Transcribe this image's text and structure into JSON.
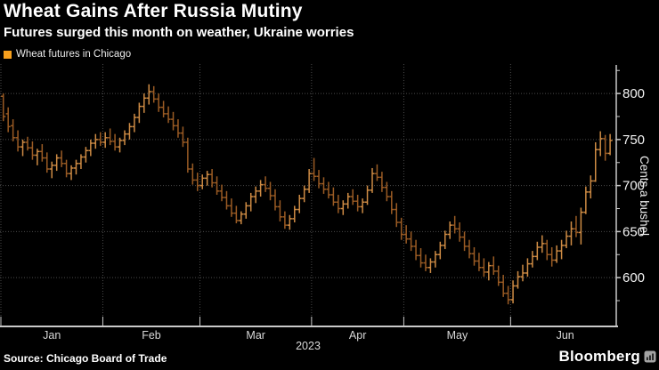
{
  "header": {
    "title": "Wheat Gains After Russia Mutiny",
    "subtitle": "Futures surged this month on weather, Ukraine worries"
  },
  "legend": {
    "label": "Wheat futures in Chicago",
    "swatch_color": "#F7A01D"
  },
  "source": {
    "label": "Source: Chicago Board of Trade"
  },
  "branding": {
    "name": "Bloomberg",
    "icon": "bloomberg-chart-mark"
  },
  "chart_data": {
    "type": "ohlc-bar",
    "title": "Wheat Gains After Russia Mutiny",
    "subtitle": "Futures surged this month on weather, Ukraine worries",
    "series_name": "Wheat futures in Chicago",
    "ylabel": "Cents a bushel",
    "year_label": "2023",
    "x_months": [
      "Jan",
      "Feb",
      "Mar",
      "Apr",
      "May",
      "Jun"
    ],
    "month_trading_days": [
      21,
      20,
      23,
      19,
      22,
      21
    ],
    "right_pad_days": 1.5,
    "yticks": [
      600,
      650,
      700,
      750,
      800
    ],
    "y_minor_ticks": [
      575,
      625,
      675,
      725,
      775,
      825
    ],
    "ylim": [
      547,
      832
    ],
    "grid": "dotted",
    "legend_position": "top-left",
    "colors": {
      "up_bar": "#CE8B44",
      "down_bar": "#9A5B24",
      "grid": "#4A4A4A",
      "axis": "#C9C9C9",
      "tick_label": "#F2F2F2",
      "month_label": "#D8D8D8",
      "background": "#000000"
    },
    "bars_ohlc": [
      [
        797,
        800,
        770,
        775
      ],
      [
        778,
        785,
        758,
        764
      ],
      [
        765,
        772,
        748,
        752
      ],
      [
        752,
        760,
        737,
        742
      ],
      [
        742,
        750,
        732,
        747
      ],
      [
        747,
        753,
        738,
        741
      ],
      [
        741,
        748,
        728,
        733
      ],
      [
        733,
        740,
        722,
        737
      ],
      [
        737,
        745,
        726,
        730
      ],
      [
        730,
        736,
        714,
        718
      ],
      [
        718,
        726,
        708,
        722
      ],
      [
        722,
        734,
        716,
        730
      ],
      [
        730,
        738,
        720,
        724
      ],
      [
        724,
        728,
        709,
        713
      ],
      [
        713,
        722,
        706,
        719
      ],
      [
        719,
        728,
        712,
        724
      ],
      [
        724,
        734,
        718,
        731
      ],
      [
        731,
        742,
        725,
        738
      ],
      [
        738,
        750,
        732,
        746
      ],
      [
        746,
        756,
        740,
        750
      ],
      [
        750,
        758,
        743,
        747
      ],
      [
        747,
        758,
        741,
        752
      ],
      [
        752,
        762,
        744,
        748
      ],
      [
        748,
        756,
        738,
        742
      ],
      [
        742,
        752,
        736,
        749
      ],
      [
        749,
        760,
        744,
        756
      ],
      [
        756,
        768,
        750,
        764
      ],
      [
        764,
        778,
        758,
        774
      ],
      [
        774,
        790,
        768,
        786
      ],
      [
        786,
        800,
        779,
        795
      ],
      [
        795,
        810,
        788,
        802
      ],
      [
        802,
        808,
        790,
        794
      ],
      [
        794,
        800,
        780,
        785
      ],
      [
        785,
        792,
        774,
        778
      ],
      [
        778,
        786,
        768,
        772
      ],
      [
        772,
        780,
        760,
        765
      ],
      [
        765,
        772,
        752,
        757
      ],
      [
        757,
        764,
        742,
        747
      ],
      [
        747,
        752,
        714,
        718
      ],
      [
        718,
        724,
        701,
        706
      ],
      [
        706,
        714,
        694,
        700
      ],
      [
        700,
        712,
        696,
        708
      ],
      [
        708,
        716,
        700,
        712
      ],
      [
        712,
        718,
        698,
        703
      ],
      [
        703,
        710,
        690,
        694
      ],
      [
        694,
        701,
        683,
        687
      ],
      [
        687,
        694,
        674,
        678
      ],
      [
        678,
        686,
        666,
        670
      ],
      [
        670,
        678,
        659,
        662
      ],
      [
        662,
        672,
        658,
        669
      ],
      [
        669,
        682,
        664,
        678
      ],
      [
        678,
        692,
        672,
        688
      ],
      [
        688,
        699,
        681,
        694
      ],
      [
        694,
        706,
        688,
        701
      ],
      [
        701,
        710,
        693,
        697
      ],
      [
        697,
        704,
        684,
        689
      ],
      [
        689,
        696,
        673,
        677
      ],
      [
        677,
        684,
        661,
        666
      ],
      [
        666,
        672,
        653,
        657
      ],
      [
        657,
        668,
        652,
        664
      ],
      [
        664,
        678,
        660,
        674
      ],
      [
        674,
        690,
        670,
        686
      ],
      [
        686,
        700,
        682,
        696
      ],
      [
        696,
        718,
        692,
        713
      ],
      [
        713,
        730,
        705,
        710
      ],
      [
        710,
        717,
        697,
        702
      ],
      [
        702,
        709,
        691,
        696
      ],
      [
        696,
        704,
        686,
        690
      ],
      [
        690,
        698,
        678,
        682
      ],
      [
        682,
        690,
        670,
        675
      ],
      [
        675,
        684,
        668,
        680
      ],
      [
        680,
        692,
        675,
        688
      ],
      [
        688,
        696,
        679,
        683
      ],
      [
        683,
        690,
        672,
        677
      ],
      [
        677,
        686,
        670,
        682
      ],
      [
        682,
        700,
        679,
        695
      ],
      [
        695,
        719,
        692,
        713
      ],
      [
        713,
        723,
        705,
        709
      ],
      [
        709,
        715,
        693,
        698
      ],
      [
        698,
        704,
        683,
        688
      ],
      [
        688,
        694,
        669,
        674
      ],
      [
        674,
        681,
        655,
        660
      ],
      [
        660,
        665,
        641,
        647
      ],
      [
        647,
        657,
        637,
        642
      ],
      [
        642,
        650,
        629,
        634
      ],
      [
        634,
        641,
        619,
        624
      ],
      [
        624,
        632,
        611,
        616
      ],
      [
        616,
        625,
        607,
        611
      ],
      [
        611,
        621,
        605,
        617
      ],
      [
        617,
        629,
        611,
        625
      ],
      [
        625,
        639,
        620,
        635
      ],
      [
        635,
        651,
        631,
        647
      ],
      [
        647,
        661,
        642,
        657
      ],
      [
        657,
        667,
        648,
        653
      ],
      [
        653,
        660,
        639,
        644
      ],
      [
        644,
        650,
        629,
        634
      ],
      [
        634,
        641,
        621,
        626
      ],
      [
        626,
        633,
        613,
        618
      ],
      [
        618,
        627,
        607,
        611
      ],
      [
        611,
        621,
        601,
        606
      ],
      [
        606,
        617,
        597,
        613
      ],
      [
        613,
        623,
        603,
        607
      ],
      [
        607,
        613,
        591,
        595
      ],
      [
        595,
        603,
        579,
        583
      ],
      [
        583,
        591,
        571,
        576
      ],
      [
        576,
        597,
        572,
        591
      ],
      [
        591,
        607,
        588,
        601
      ],
      [
        601,
        614,
        596,
        605
      ],
      [
        605,
        621,
        601,
        615
      ],
      [
        615,
        629,
        611,
        623
      ],
      [
        623,
        639,
        619,
        633
      ],
      [
        633,
        646,
        627,
        637
      ],
      [
        637,
        641,
        619,
        625
      ],
      [
        625,
        633,
        612,
        619
      ],
      [
        619,
        635,
        616,
        629
      ],
      [
        629,
        641,
        620,
        635
      ],
      [
        635,
        651,
        632,
        645
      ],
      [
        645,
        661,
        635,
        653
      ],
      [
        653,
        667,
        644,
        649
      ],
      [
        649,
        676,
        636,
        671
      ],
      [
        671,
        699,
        669,
        693
      ],
      [
        693,
        711,
        686,
        705
      ],
      [
        705,
        747,
        704,
        739
      ],
      [
        739,
        759,
        732,
        751
      ],
      [
        751,
        755,
        727,
        735
      ],
      [
        735,
        756,
        733,
        749
      ]
    ]
  }
}
